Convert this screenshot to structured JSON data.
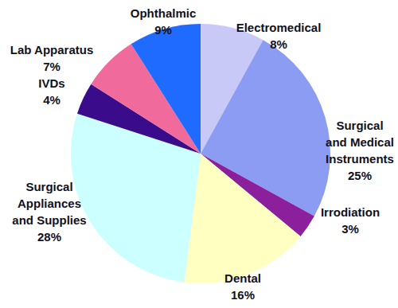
{
  "chart_data": {
    "type": "pie",
    "categories": [
      "Electromedical",
      "Surgical and Medical Instruments",
      "Irrodiation",
      "Dental",
      "Surgical Appliances and Supplies",
      "IVDs",
      "Lab Apparatus",
      "Ophthalmic"
    ],
    "values": [
      8,
      25,
      3,
      16,
      28,
      4,
      7,
      9
    ],
    "value_labels": [
      "8%",
      "25%",
      "3%",
      "16%",
      "28%",
      "4%",
      "7%",
      "9%"
    ],
    "colors": [
      "#c9c9f7",
      "#8c9cf3",
      "#8c1f9c",
      "#ffffc2",
      "#ccffff",
      "#3a0c8c",
      "#f06a9c",
      "#1f6bff"
    ],
    "data_labels": true
  }
}
